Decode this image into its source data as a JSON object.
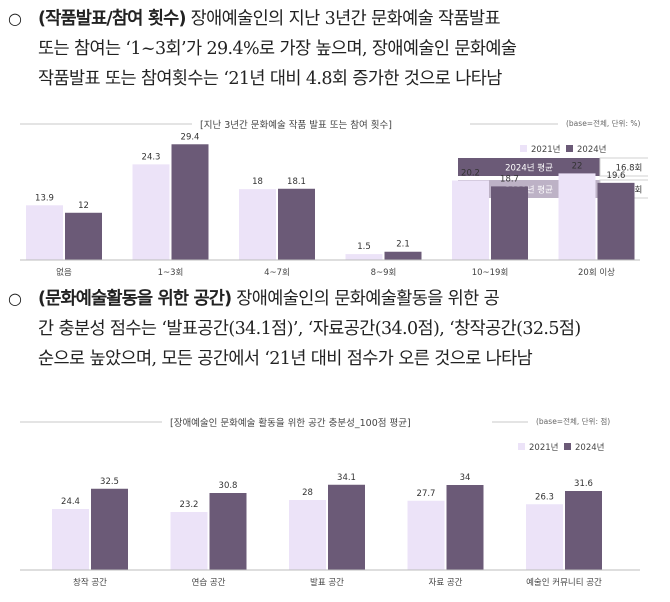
{
  "section1": {
    "bullet": "○",
    "heading": "(작품발표/참여 횟수)",
    "line1_rest": " 장애예술인의 지난 3년간 문화예술 작품발표",
    "line2": "또는 참여는 ‘1~3회’가 29.4%로 가장 높으며, 장애예술인 문화예술",
    "line3": "작품발표 또는 참여횟수는 ‘21년 대비 4.8회 증가한 것으로 나타남"
  },
  "section2": {
    "bullet": "○",
    "heading": "(문화예술활동을 위한 공간)",
    "line1_rest": " 장애예술인의 문화예술활동을 위한 공",
    "line2": "간 충분성 점수는 ‘발표공간(34.1점)’, ‘자료공간(34.0점), ‘창작공간(32.5점)",
    "line3": "순으로 높았으며, 모든 공간에서 ‘21년 대비 점수가 오른 것으로 나타남"
  },
  "chart_data": [
    {
      "type": "bar",
      "title": "[지난 3년간 문화예술 작품 발표 또는 참여 횟수]",
      "note": "(base=전체, 단위: %)",
      "categories": [
        "없음",
        "1~3회",
        "4~7회",
        "8~9회",
        "10~19회",
        "20회 이상"
      ],
      "series": [
        {
          "name": "2021년",
          "color": "#ece3f8",
          "values": [
            13.9,
            24.3,
            18.0,
            1.5,
            20.2,
            22.0
          ]
        },
        {
          "name": "2024년",
          "color": "#6b5a77",
          "values": [
            12.0,
            29.4,
            18.1,
            2.1,
            18.7,
            19.6
          ]
        }
      ],
      "summary_table": [
        {
          "label": "2024년 평균",
          "value": "16.8회",
          "color": "#6b5a77"
        },
        {
          "label": "2021년 평균",
          "value": "12.0회",
          "color": "#bdb2c6"
        }
      ],
      "ylim": [
        0,
        35
      ],
      "grid": false,
      "legend": "top-right"
    },
    {
      "type": "bar",
      "title": "[장애예술인 문화예술 활동을 위한 공간 충분성_100점 평균]",
      "note": "(base=전체, 단위: 점)",
      "categories": [
        "창작 공간",
        "연습 공간",
        "발표 공간",
        "자료 공간",
        "예술인 커뮤니티 공간"
      ],
      "series": [
        {
          "name": "2021년",
          "color": "#ece3f8",
          "values": [
            24.4,
            23.2,
            28.0,
            27.7,
            26.3
          ]
        },
        {
          "name": "2024년",
          "color": "#6b5a77",
          "values": [
            32.5,
            30.8,
            34.1,
            34.0,
            31.6
          ]
        }
      ],
      "ylim": [
        0,
        40
      ],
      "grid": false,
      "legend": "top-right"
    }
  ]
}
